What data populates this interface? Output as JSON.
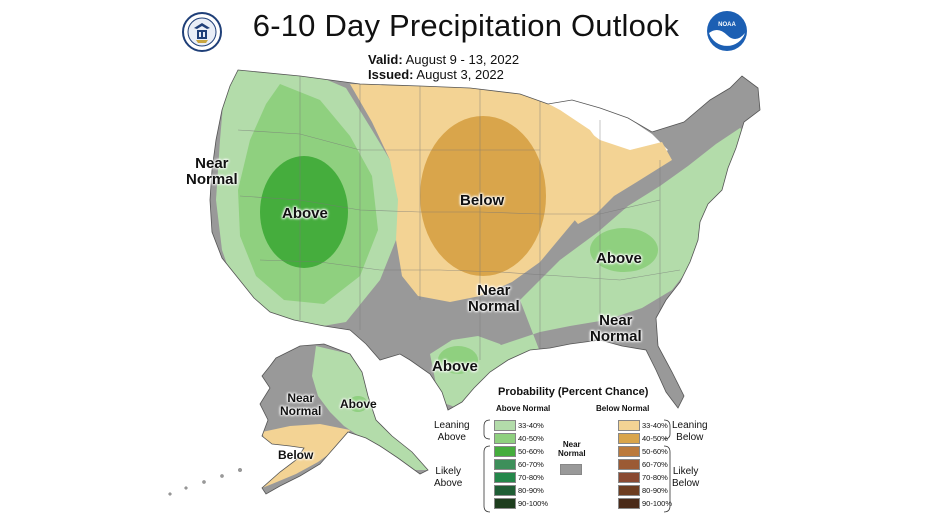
{
  "header": {
    "title": "6-10 Day Precipitation Outlook",
    "valid_label": "Valid:",
    "valid_value": "August 9 - 13, 2022",
    "issued_label": "Issued:",
    "issued_value": "August 3, 2022"
  },
  "logos": {
    "left": "doc-seal-icon",
    "right": "noaa-logo-icon"
  },
  "colors": {
    "leaning_above": "#b3dcaa",
    "above_40": "#8fd07f",
    "above_50": "#45ad3d",
    "leaning_below": "#f3d394",
    "below_40": "#d9a54b",
    "near_normal": "#999999",
    "no_data": "#ffffff"
  },
  "map_labels": {
    "near_normal_west": "Near\nNormal",
    "above_west": "Above",
    "below_central": "Below",
    "near_normal_central": "Near\nNormal",
    "above_east": "Above",
    "near_normal_southeast": "Near\nNormal",
    "above_texas": "Above",
    "alaska_near_normal": "Near\nNormal",
    "alaska_above": "Above",
    "alaska_below": "Below"
  },
  "legend": {
    "title": "Probability (Percent Chance)",
    "above_header": "Above Normal",
    "below_header": "Below Normal",
    "leaning_above": "Leaning\nAbove",
    "leaning_below": "Leaning\nBelow",
    "likely_above": "Likely\nAbove",
    "likely_below": "Likely\nBelow",
    "near_normal": "Near\nNormal",
    "above_items": [
      {
        "range": "33-40%",
        "color": "#b3dcaa"
      },
      {
        "range": "40-50%",
        "color": "#8fd07f"
      },
      {
        "range": "50-60%",
        "color": "#45ad3d"
      },
      {
        "range": "60-70%",
        "color": "#3d8f5a"
      },
      {
        "range": "70-80%",
        "color": "#24874a"
      },
      {
        "range": "80-90%",
        "color": "#1f5e35"
      },
      {
        "range": "90-100%",
        "color": "#1d3d1d"
      }
    ],
    "below_items": [
      {
        "range": "33-40%",
        "color": "#f3d394"
      },
      {
        "range": "40-50%",
        "color": "#d9a54b"
      },
      {
        "range": "50-60%",
        "color": "#bb7a3c"
      },
      {
        "range": "60-70%",
        "color": "#9b5a34"
      },
      {
        "range": "70-80%",
        "color": "#8a4a32"
      },
      {
        "range": "80-90%",
        "color": "#6d3d20"
      },
      {
        "range": "90-100%",
        "color": "#4a2a18"
      }
    ],
    "near_normal_color": "#999999"
  }
}
